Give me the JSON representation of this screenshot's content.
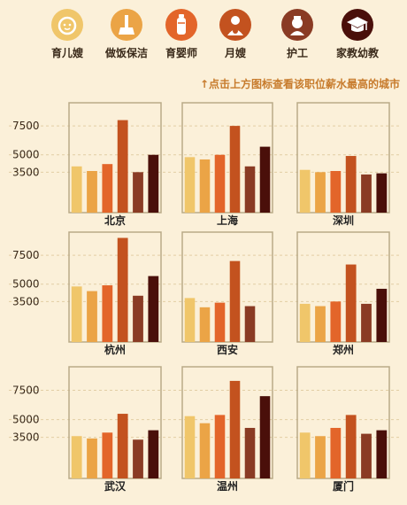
{
  "legend": {
    "items": [
      {
        "label": "育儿嫂",
        "color": "#f0c66a",
        "icon": "baby-face-icon"
      },
      {
        "label": "做饭保洁",
        "color": "#eba446",
        "icon": "chef-broom-icon"
      },
      {
        "label": "育婴师",
        "color": "#e3652a",
        "icon": "baby-bottle-icon"
      },
      {
        "label": "月嫂",
        "color": "#c3521f",
        "icon": "mother-baby-icon"
      },
      {
        "label": "护工",
        "color": "#8a3b24",
        "icon": "nurse-icon"
      },
      {
        "label": "家教幼教",
        "color": "#4a0f0a",
        "icon": "graduation-cap-icon"
      }
    ]
  },
  "hint": "↑点击上方图标查看该职位薪水最高的城市",
  "chart_data": {
    "type": "bar",
    "categories": [
      "育儿嫂",
      "做饭保洁",
      "育婴师",
      "月嫂",
      "护工",
      "家教幼教"
    ],
    "ylim": [
      0,
      9500
    ],
    "yticks": [
      3500,
      5000,
      7500
    ],
    "panels": [
      {
        "city": "北京",
        "values": [
          4000,
          3600,
          4200,
          8000,
          3500,
          5000
        ]
      },
      {
        "city": "上海",
        "values": [
          4800,
          4600,
          5000,
          7500,
          4000,
          5700
        ]
      },
      {
        "city": "深圳",
        "values": [
          3700,
          3500,
          3600,
          4900,
          3300,
          3400
        ]
      },
      {
        "city": "杭州",
        "values": [
          4800,
          4400,
          4900,
          9000,
          4000,
          5700
        ]
      },
      {
        "city": "西安",
        "values": [
          3800,
          3000,
          3400,
          7000,
          3100,
          0
        ]
      },
      {
        "city": "郑州",
        "values": [
          3300,
          3100,
          3500,
          6700,
          3300,
          4600
        ]
      },
      {
        "city": "武汉",
        "values": [
          3600,
          3400,
          3900,
          5500,
          3300,
          4100
        ]
      },
      {
        "city": "温州",
        "values": [
          5300,
          4700,
          5400,
          8300,
          4300,
          7000
        ]
      },
      {
        "city": "厦门",
        "values": [
          3900,
          3600,
          4300,
          5400,
          3800,
          4100
        ]
      }
    ]
  }
}
